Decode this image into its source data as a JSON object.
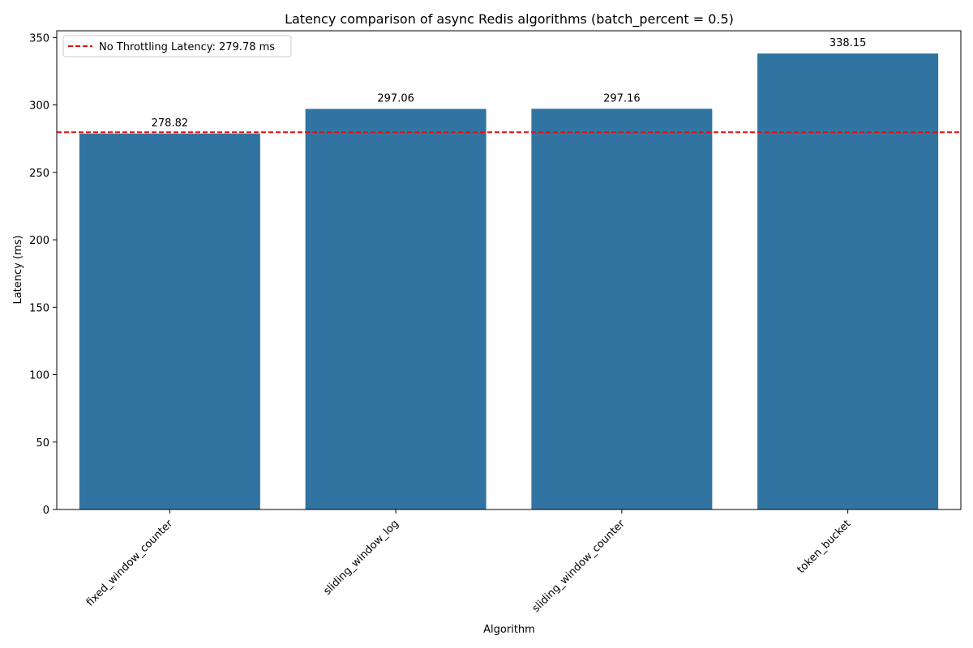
{
  "chart_data": {
    "type": "bar",
    "title": "Latency comparison of async Redis algorithms (batch_percent = 0.5)",
    "xlabel": "Algorithm",
    "ylabel": "Latency (ms)",
    "categories": [
      "fixed_window_counter",
      "sliding_window_log",
      "sliding_window_counter",
      "token_bucket"
    ],
    "values": [
      278.82,
      297.06,
      297.16,
      338.15
    ],
    "data_labels": [
      "278.82",
      "297.06",
      "297.16",
      "338.15"
    ],
    "ylim": [
      0,
      355
    ],
    "yticks": [
      0,
      50,
      100,
      150,
      200,
      250,
      300,
      350
    ],
    "bar_color": "#3274a1",
    "reference_line": {
      "value": 279.78,
      "label": "No Throttling Latency: 279.78 ms",
      "color": "#e01010",
      "style": "dashed"
    },
    "legend_position": "top-left",
    "grid": false
  }
}
